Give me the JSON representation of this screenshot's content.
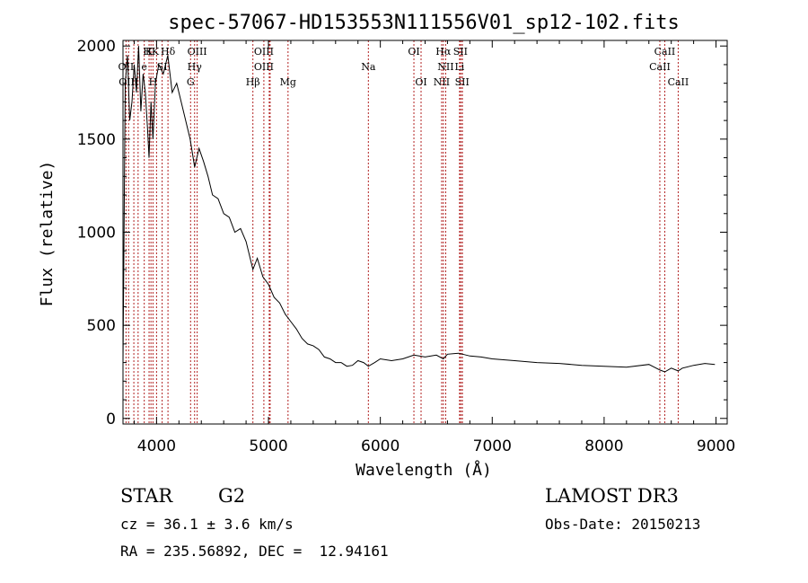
{
  "chart_data": {
    "type": "line",
    "title": "spec-57067-HD153553N111556V01_sp12-102.fits",
    "xlabel": "Wavelength (Å)",
    "ylabel": "Flux (relative)",
    "xlim": [
      3700,
      9100
    ],
    "ylim": [
      -30,
      2030
    ],
    "xticks": [
      4000,
      5000,
      6000,
      7000,
      8000,
      9000
    ],
    "yticks": [
      0,
      500,
      1000,
      1500,
      2000
    ],
    "series": [
      {
        "name": "flux",
        "x": [
          3700,
          3720,
          3740,
          3760,
          3780,
          3800,
          3820,
          3840,
          3860,
          3880,
          3900,
          3920,
          3933,
          3950,
          3968,
          3990,
          4020,
          4060,
          4100,
          4140,
          4180,
          4220,
          4260,
          4300,
          4340,
          4380,
          4420,
          4460,
          4500,
          4550,
          4600,
          4650,
          4700,
          4750,
          4800,
          4861,
          4900,
          4950,
          5000,
          5050,
          5100,
          5150,
          5200,
          5250,
          5300,
          5350,
          5400,
          5450,
          5500,
          5550,
          5600,
          5650,
          5700,
          5750,
          5800,
          5850,
          5893,
          5950,
          6000,
          6100,
          6200,
          6300,
          6400,
          6500,
          6563,
          6600,
          6700,
          6800,
          6900,
          7000,
          7200,
          7400,
          7600,
          7800,
          8000,
          8200,
          8400,
          8498,
          8542,
          8600,
          8662,
          8700,
          8800,
          8900,
          8990
        ],
        "y": [
          300,
          1800,
          1950,
          1600,
          1700,
          1900,
          1750,
          2000,
          1650,
          1850,
          1750,
          1550,
          1400,
          1700,
          1500,
          1800,
          1900,
          1850,
          1950,
          1750,
          1800,
          1700,
          1600,
          1500,
          1350,
          1450,
          1380,
          1300,
          1200,
          1180,
          1100,
          1080,
          1000,
          1020,
          950,
          800,
          860,
          760,
          720,
          650,
          620,
          560,
          520,
          480,
          430,
          400,
          390,
          370,
          330,
          320,
          300,
          300,
          280,
          285,
          310,
          300,
          280,
          300,
          320,
          310,
          320,
          340,
          330,
          340,
          320,
          345,
          350,
          335,
          330,
          320,
          310,
          300,
          295,
          285,
          280,
          275,
          290,
          260,
          250,
          270,
          255,
          270,
          285,
          295,
          290
        ]
      }
    ],
    "lines_top": [
      {
        "label": "HK",
        "x": 3950
      },
      {
        "label": "K",
        "x": 3933
      },
      {
        "label": "Hδ",
        "x": 4102
      },
      {
        "label": "OIII",
        "x": 4363
      },
      {
        "label": "OIII",
        "x": 4959
      },
      {
        "label": "OI",
        "x": 6300
      },
      {
        "label": "Hα",
        "x": 6563
      },
      {
        "label": "SII",
        "x": 6716
      },
      {
        "label": "CaII",
        "x": 8542
      }
    ],
    "lines_mid": [
      {
        "label": "OII",
        "x": 3727
      },
      {
        "label": "e",
        "x": 3890
      },
      {
        "label": "SI",
        "x": 4050
      },
      {
        "label": "Hγ",
        "x": 4340
      },
      {
        "label": "OIII",
        "x": 4959
      },
      {
        "label": "Na",
        "x": 5893
      },
      {
        "label": "NII",
        "x": 6584
      },
      {
        "label": "Li",
        "x": 6708
      },
      {
        "label": "CaII",
        "x": 8498
      }
    ],
    "lines_low": [
      {
        "label": "OIII",
        "x": 3750
      },
      {
        "label": "H",
        "x": 3968
      },
      {
        "label": "G",
        "x": 4304
      },
      {
        "label": "Hβ",
        "x": 4861
      },
      {
        "label": "Mg",
        "x": 5175
      },
      {
        "label": "OI",
        "x": 6364
      },
      {
        "label": "NII",
        "x": 6548
      },
      {
        "label": "SII",
        "x": 6731
      },
      {
        "label": "CaII",
        "x": 8662
      }
    ],
    "extra_line_x": [
      3797,
      3835,
      4000,
      5007,
      5015,
      6717,
      6733
    ]
  },
  "info": {
    "object_type": "STAR",
    "subclass": "G2",
    "survey": "LAMOST DR3",
    "cz": "cz = 36.1 ± 3.6 km/s",
    "obs_date": "Obs-Date: 20150213",
    "coords": "RA = 235.56892, DEC =  12.94161"
  },
  "colors": {
    "line_marker": "#b22222",
    "spectrum": "#000000"
  }
}
